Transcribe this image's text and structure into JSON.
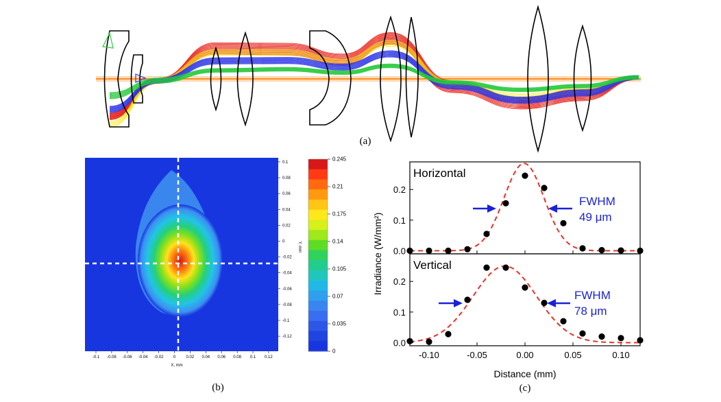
{
  "panel_a": {
    "caption": "(a)"
  },
  "panel_b": {
    "caption": "(b)",
    "xlabel": "X, mm",
    "ylabel": "Y, mm",
    "x_ticks": [
      "-0.1",
      "-0.08",
      "-0.06",
      "-0.04",
      "-0.02",
      "0",
      "0.02",
      "0.04",
      "0.06",
      "0.08",
      "0.1",
      "0.12"
    ],
    "y_ticks": [
      "0.1",
      "0.08",
      "0.06",
      "0.04",
      "0.02",
      "0",
      "-0.02",
      "-0.04",
      "-0.06",
      "-0.08",
      "-0.1",
      "-0.12"
    ],
    "colorbar_ticks": [
      "0.245",
      "0.21",
      "0.175",
      "0.14",
      "0.105",
      "0.07",
      "0.035",
      "0"
    ]
  },
  "panel_c": {
    "caption": "(c)"
  },
  "chart_data": [
    {
      "type": "heatmap",
      "title": "",
      "xlabel": "X, mm",
      "ylabel": "Y, mm",
      "xlim": [
        -0.11,
        0.125
      ],
      "ylim": [
        -0.135,
        0.105
      ],
      "colorbar_range": [
        0,
        0.245
      ],
      "peak_value": 0.245,
      "peak_location": [
        0.005,
        -0.03
      ],
      "crosshair": {
        "x": 0.0,
        "y": -0.03
      }
    },
    {
      "type": "scatter",
      "title": "Horizontal",
      "xlabel": "Distance (mm)",
      "ylabel": "Irradiance (W/mm²)",
      "xlim": [
        -0.12,
        0.12
      ],
      "ylim": [
        -0.01,
        0.29
      ],
      "x_ticks": [
        "-0.10",
        "-0.05",
        "0.00",
        "0.05",
        "0.10"
      ],
      "y_ticks": [
        "0.0",
        "0.1",
        "0.2"
      ],
      "measured": {
        "x": [
          -0.12,
          -0.1,
          -0.08,
          -0.06,
          -0.04,
          -0.02,
          0.0,
          0.02,
          0.04,
          0.06,
          0.08,
          0.1,
          0.12
        ],
        "y": [
          0.0,
          0.0,
          0.0,
          0.005,
          0.055,
          0.155,
          0.245,
          0.205,
          0.09,
          0.008,
          0.002,
          0.001,
          0.0
        ]
      },
      "fit": {
        "style": "dashed",
        "color": "#e8302a",
        "peak": 0.285,
        "center": -0.001,
        "fwhm": 0.049
      },
      "annotation": {
        "label": "FWHM",
        "value": "49 μm"
      }
    },
    {
      "type": "scatter",
      "title": "Vertical",
      "xlabel": "Distance (mm)",
      "ylabel": "Irradiance (W/mm²)",
      "xlim": [
        -0.12,
        0.12
      ],
      "ylim": [
        -0.01,
        0.29
      ],
      "x_ticks": [
        "-0.10",
        "-0.05",
        "0.00",
        "0.05",
        "0.10"
      ],
      "y_ticks": [
        "0.0",
        "0.1",
        "0.2"
      ],
      "measured": {
        "x": [
          -0.12,
          -0.1,
          -0.08,
          -0.06,
          -0.04,
          -0.02,
          0.0,
          0.02,
          0.04,
          0.06,
          0.08,
          0.1,
          0.12
        ],
        "y": [
          0.005,
          0.003,
          0.028,
          0.14,
          0.245,
          0.245,
          0.18,
          0.13,
          0.07,
          0.03,
          0.02,
          0.015,
          0.008
        ]
      },
      "fit": {
        "style": "dashed",
        "color": "#e8302a",
        "peak": 0.25,
        "center": -0.021,
        "fwhm": 0.078
      },
      "annotation": {
        "label": "FWHM",
        "value": "78 μm"
      }
    }
  ],
  "colors": {
    "fit": "#e8302a",
    "marker": "#000000",
    "annotation": "#1a22d8",
    "heatmap_background": "#1736e0",
    "crosshair": "#ffffff"
  }
}
